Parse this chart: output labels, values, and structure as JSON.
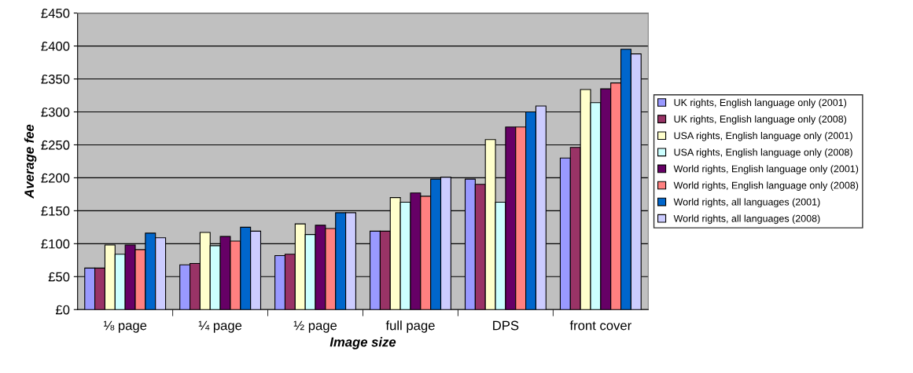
{
  "chart_data": {
    "type": "bar",
    "xlabel": "Image size",
    "ylabel": "Average fee",
    "categories": [
      "⅛ page",
      "¼ page",
      "½ page",
      "full page",
      "DPS",
      "front cover"
    ],
    "series": [
      {
        "name": "UK rights, English language only (2001)",
        "color": "#9999ff",
        "values": [
          63,
          68,
          82,
          119,
          198,
          230
        ]
      },
      {
        "name": "UK rights, English language only (2008)",
        "color": "#993366",
        "values": [
          63,
          70,
          84,
          119,
          190,
          246
        ]
      },
      {
        "name": "USA rights, English language only (2001)",
        "color": "#ffffcc",
        "values": [
          98,
          117,
          130,
          170,
          258,
          334
        ]
      },
      {
        "name": "USA rights, English language only (2008)",
        "color": "#ccffff",
        "values": [
          84,
          97,
          114,
          163,
          163,
          314
        ]
      },
      {
        "name": "World rights, English language only (2001)",
        "color": "#660066",
        "values": [
          98,
          111,
          128,
          177,
          277,
          335
        ]
      },
      {
        "name": "World rights, English language only (2008)",
        "color": "#ff8080",
        "values": [
          91,
          104,
          123,
          172,
          277,
          344
        ]
      },
      {
        "name": "World rights, all languages (2001)",
        "color": "#0066cc",
        "values": [
          116,
          125,
          147,
          198,
          300,
          395
        ]
      },
      {
        "name": "World rights, all languages (2008)",
        "color": "#ccccff",
        "values": [
          109,
          119,
          147,
          201,
          309,
          388
        ]
      }
    ],
    "ylim": [
      0,
      450
    ],
    "yticks": [
      {
        "value": 0,
        "label": "£0"
      },
      {
        "value": 50,
        "label": "£50"
      },
      {
        "value": 100,
        "label": "£100"
      },
      {
        "value": 150,
        "label": "£150"
      },
      {
        "value": 200,
        "label": "£200"
      },
      {
        "value": 250,
        "label": "£250"
      },
      {
        "value": 300,
        "label": "£300"
      },
      {
        "value": 350,
        "label": "£350"
      },
      {
        "value": 400,
        "label": "£400"
      },
      {
        "value": 450,
        "label": "£450"
      }
    ],
    "grid": "y",
    "legend": "right"
  }
}
